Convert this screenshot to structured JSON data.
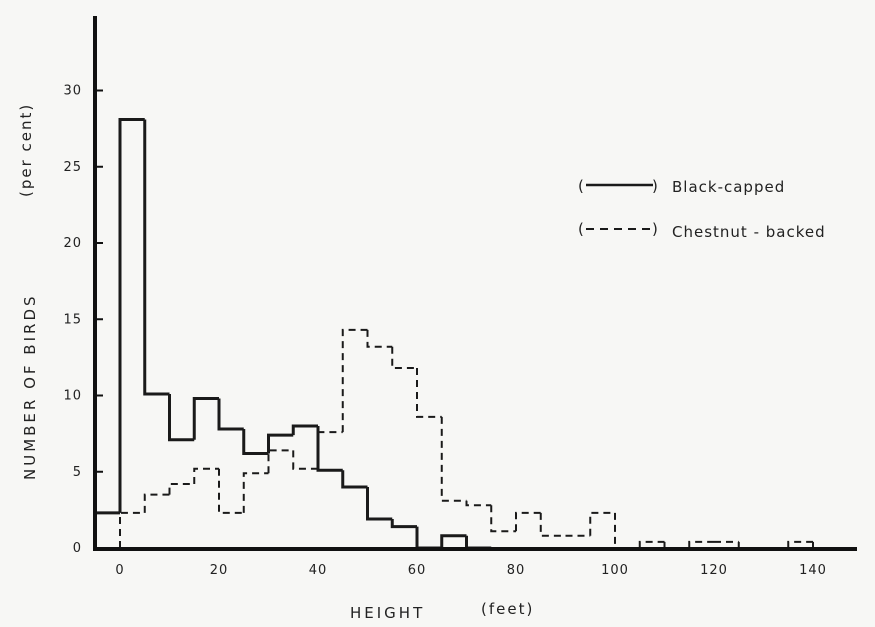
{
  "chart_data": {
    "type": "histogram-step",
    "title": "",
    "xlabel": "HEIGHT",
    "xlabel_unit": "(feet)",
    "ylabel": "NUMBER OF BIRDS",
    "ylabel_unit": "(per cent)",
    "xlim": [
      -5,
      145
    ],
    "ylim": [
      0,
      35
    ],
    "x_ticks": [
      0,
      20,
      40,
      60,
      80,
      100,
      120,
      140
    ],
    "x_tick_labels": [
      "0",
      "20",
      "40",
      "60",
      "80",
      "100",
      "120",
      "140"
    ],
    "y_ticks": [
      0,
      5,
      10,
      15,
      20,
      25,
      30
    ],
    "y_tick_labels": [
      "0",
      "5",
      "10",
      "15",
      "20",
      "25",
      "30"
    ],
    "grid": false,
    "legend_position": "right",
    "series": [
      {
        "name": "Black-capped",
        "legend_label": "Black-capped",
        "legend_marker": "(———)",
        "line_style": "solid",
        "bins": [
          {
            "x0": -5,
            "x1": 0,
            "y": 2.3
          },
          {
            "x0": 0,
            "x1": 5,
            "y": 28.1
          },
          {
            "x0": 5,
            "x1": 10,
            "y": 10.1
          },
          {
            "x0": 10,
            "x1": 15,
            "y": 7.1
          },
          {
            "x0": 15,
            "x1": 20,
            "y": 9.8
          },
          {
            "x0": 20,
            "x1": 25,
            "y": 7.8
          },
          {
            "x0": 25,
            "x1": 30,
            "y": 6.2
          },
          {
            "x0": 30,
            "x1": 35,
            "y": 7.4
          },
          {
            "x0": 35,
            "x1": 40,
            "y": 8.0
          },
          {
            "x0": 40,
            "x1": 45,
            "y": 5.1
          },
          {
            "x0": 45,
            "x1": 50,
            "y": 4.0
          },
          {
            "x0": 50,
            "x1": 55,
            "y": 1.9
          },
          {
            "x0": 55,
            "x1": 60,
            "y": 1.4
          },
          {
            "x0": 60,
            "x1": 65,
            "y": 0
          },
          {
            "x0": 65,
            "x1": 70,
            "y": 0.8
          },
          {
            "x0": 70,
            "x1": 75,
            "y": 0
          }
        ]
      },
      {
        "name": "Chestnut-backed",
        "legend_label": "Chestnut - backed",
        "legend_marker": "(- - - -)",
        "line_style": "dashed",
        "bins": [
          {
            "x0": 0,
            "x1": 5,
            "y": 2.3
          },
          {
            "x0": 5,
            "x1": 10,
            "y": 3.5
          },
          {
            "x0": 10,
            "x1": 15,
            "y": 4.2
          },
          {
            "x0": 15,
            "x1": 20,
            "y": 5.2
          },
          {
            "x0": 20,
            "x1": 25,
            "y": 2.3
          },
          {
            "x0": 25,
            "x1": 30,
            "y": 4.9
          },
          {
            "x0": 30,
            "x1": 35,
            "y": 6.4
          },
          {
            "x0": 35,
            "x1": 40,
            "y": 5.2
          },
          {
            "x0": 40,
            "x1": 45,
            "y": 7.6
          },
          {
            "x0": 45,
            "x1": 50,
            "y": 14.3
          },
          {
            "x0": 50,
            "x1": 55,
            "y": 13.2
          },
          {
            "x0": 55,
            "x1": 60,
            "y": 11.8
          },
          {
            "x0": 60,
            "x1": 65,
            "y": 8.6
          },
          {
            "x0": 65,
            "x1": 70,
            "y": 3.1
          },
          {
            "x0": 70,
            "x1": 75,
            "y": 2.8
          },
          {
            "x0": 75,
            "x1": 80,
            "y": 1.1
          },
          {
            "x0": 80,
            "x1": 85,
            "y": 2.3
          },
          {
            "x0": 85,
            "x1": 90,
            "y": 0.8
          },
          {
            "x0": 90,
            "x1": 95,
            "y": 0.8
          },
          {
            "x0": 95,
            "x1": 100,
            "y": 2.3
          },
          {
            "x0": 100,
            "x1": 105,
            "y": 0
          },
          {
            "x0": 105,
            "x1": 110,
            "y": 0.4
          },
          {
            "x0": 110,
            "x1": 115,
            "y": 0
          },
          {
            "x0": 115,
            "x1": 120,
            "y": 0.4
          },
          {
            "x0": 120,
            "x1": 125,
            "y": 0.4
          },
          {
            "x0": 125,
            "x1": 135,
            "y": 0
          },
          {
            "x0": 135,
            "x1": 140,
            "y": 0.4
          },
          {
            "x0": 140,
            "x1": 145,
            "y": 0
          }
        ]
      }
    ]
  }
}
